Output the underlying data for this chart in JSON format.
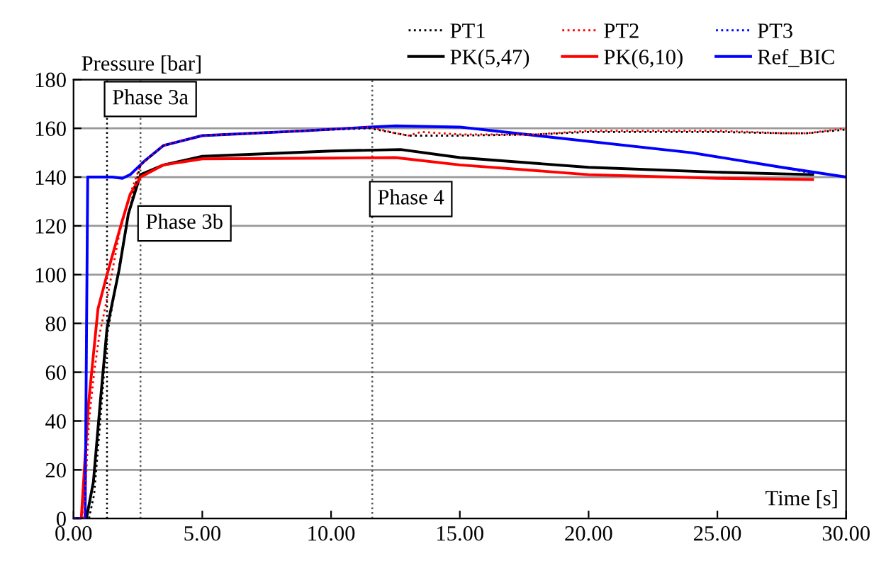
{
  "chart_data": {
    "type": "line",
    "xlabel": "Time [s]",
    "ylabel": "Pressure [bar]",
    "xlim": [
      0,
      30
    ],
    "ylim": [
      0,
      180
    ],
    "xticks": [
      {
        "value": 0,
        "label": "0.00"
      },
      {
        "value": 5,
        "label": "5.00"
      },
      {
        "value": 10,
        "label": "10.00"
      },
      {
        "value": 15,
        "label": "15.00"
      },
      {
        "value": 20,
        "label": "20.00"
      },
      {
        "value": 25,
        "label": "25.00"
      },
      {
        "value": 30,
        "label": "30.00"
      }
    ],
    "yticks": [
      0,
      20,
      40,
      60,
      80,
      100,
      120,
      140,
      160,
      180
    ],
    "grid": "y",
    "legend": "top right",
    "marker": "none",
    "series": [
      {
        "name": "PT1",
        "color": "#000000",
        "line_style": "dotted",
        "x": [
          0,
          0.6,
          0.8,
          1.0,
          1.3,
          1.8,
          2.2,
          2.6,
          3.5,
          5,
          8,
          10,
          11.5,
          12.5,
          13,
          15,
          18,
          20,
          25,
          27.5,
          28.5,
          30
        ],
        "values": [
          0,
          0,
          10,
          35,
          75,
          105,
          128,
          145,
          153,
          157,
          158.5,
          159.5,
          160,
          158,
          157,
          157,
          157.5,
          158.5,
          158.5,
          158,
          158,
          159.5
        ]
      },
      {
        "name": "PT2",
        "color": "#ff0000",
        "line_style": "dotted",
        "x": [
          0,
          0.4,
          0.6,
          0.8,
          1.0,
          1.3,
          1.8,
          2.2,
          2.6,
          3.5,
          5,
          8,
          10,
          11.5,
          12.5,
          13,
          13.5,
          15,
          18,
          20,
          25,
          27.5,
          28.5,
          30
        ],
        "values": [
          0,
          0,
          40,
          60,
          75,
          90,
          118,
          133,
          145,
          153,
          157,
          158.5,
          159.6,
          160.5,
          158,
          157,
          158.5,
          157.5,
          157.5,
          159,
          159,
          158,
          158,
          160
        ]
      },
      {
        "name": "PT3",
        "color": "#0000ff",
        "line_style": "dotted",
        "x": [
          0,
          0.45,
          0.55,
          1.5,
          1.9,
          2.2,
          2.8,
          3.5,
          5,
          9,
          11.5,
          12.5,
          15,
          18,
          24,
          27.5,
          28.7
        ],
        "values": [
          0,
          0,
          140,
          140,
          139.5,
          141,
          147,
          153,
          157,
          159,
          160.5,
          161,
          160.5,
          157,
          150,
          144,
          141.5
        ]
      },
      {
        "name": "PK(5,47)",
        "color": "#000000",
        "line_style": "solid",
        "x": [
          0,
          0.5,
          0.77,
          1.04,
          1.3,
          1.77,
          2.13,
          2.6,
          3.5,
          5,
          10,
          12.7,
          15,
          20,
          25,
          28.7
        ],
        "values": [
          0,
          0,
          15,
          48,
          78,
          102,
          125,
          141,
          145,
          148.5,
          150.7,
          151.3,
          148,
          144,
          142,
          141
        ]
      },
      {
        "name": "PK(6,10)",
        "color": "#ff0000",
        "line_style": "solid",
        "x": [
          0,
          0.3,
          0.58,
          0.95,
          1.3,
          1.86,
          2.2,
          2.6,
          3.5,
          5,
          10,
          12.5,
          15,
          20,
          25,
          28.7
        ],
        "values": [
          0,
          0,
          47,
          86,
          100,
          121,
          133,
          140,
          145,
          147.5,
          147.8,
          148,
          145,
          141,
          139.5,
          139
        ]
      },
      {
        "name": "Ref_BIC",
        "color": "#0000ff",
        "line_style": "solid",
        "x": [
          0,
          0.45,
          0.55,
          1.5,
          1.9,
          2.2,
          2.8,
          3.5,
          5,
          9,
          11.5,
          12.5,
          15,
          18,
          24,
          27.5,
          30
        ],
        "values": [
          0,
          0,
          140,
          140,
          139.5,
          141,
          147,
          153,
          157,
          159,
          160.5,
          161,
          160.5,
          157,
          150,
          144,
          140
        ]
      }
    ],
    "ref_lines": [
      {
        "axis": "x",
        "value": 1.3,
        "label": "Phase 3a",
        "line_style": "dotted",
        "color": "#000000"
      },
      {
        "axis": "x",
        "value": 2.6,
        "label": "Phase 3b",
        "line_style": "dotted",
        "color": "#555555"
      },
      {
        "axis": "x",
        "value": 11.6,
        "label": "Phase 4",
        "line_style": "dotted",
        "color": "#555555"
      }
    ]
  }
}
